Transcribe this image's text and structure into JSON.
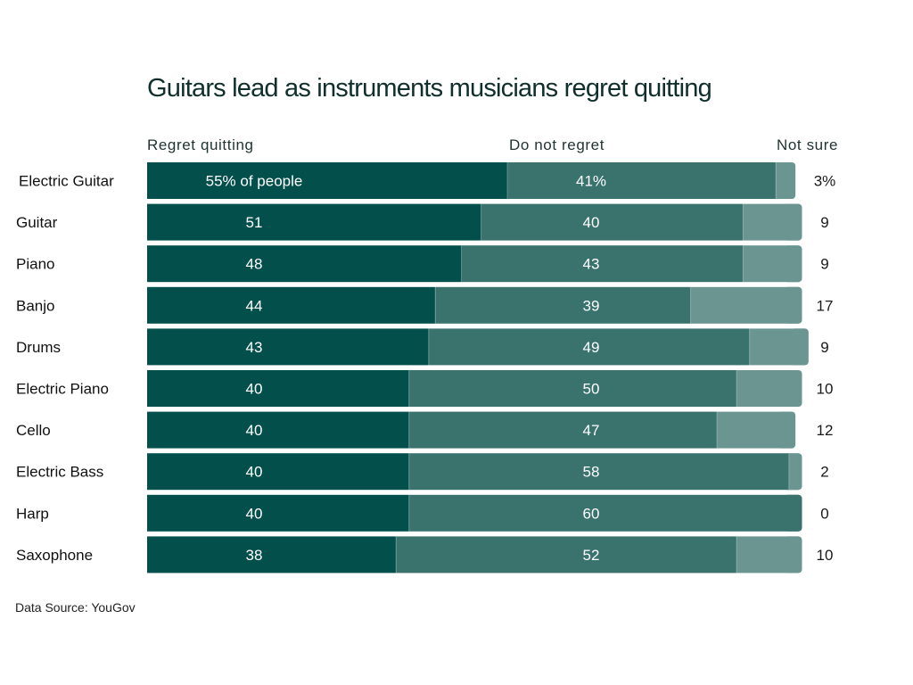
{
  "chart_data": {
    "type": "bar",
    "orientation": "horizontal",
    "stacked": true,
    "title": "Guitars lead as instruments musicians regret quitting",
    "source": "Data Source: YouGov",
    "categories": [
      "Electric Guitar",
      "Guitar",
      "Piano",
      "Banjo",
      "Drums",
      "Electric Piano",
      "Cello",
      "Electric Bass",
      "Harp",
      "Saxophone"
    ],
    "series": [
      {
        "name": "Regret quitting",
        "color": "#024f4b",
        "values": [
          55,
          51,
          48,
          44,
          43,
          40,
          40,
          40,
          40,
          38
        ],
        "labels": [
          "55% of people",
          "51",
          "48",
          "44",
          "43",
          "40",
          "40",
          "40",
          "40",
          "38"
        ]
      },
      {
        "name": "Do not regret",
        "color": "#3a726e",
        "values": [
          41,
          40,
          43,
          39,
          49,
          50,
          47,
          58,
          60,
          52
        ],
        "labels": [
          "41%",
          "40",
          "43",
          "39",
          "49",
          "50",
          "47",
          "58",
          "60",
          "52"
        ]
      },
      {
        "name": "Not sure",
        "color": "#6a9591",
        "values": [
          3,
          9,
          9,
          17,
          9,
          10,
          12,
          2,
          0,
          10
        ],
        "labels": [
          "3%",
          "9",
          "9",
          "17",
          "9",
          "10",
          "12",
          "2",
          "0",
          "10"
        ]
      }
    ],
    "xlim": [
      0,
      100
    ],
    "grid": false,
    "legend": "top"
  }
}
